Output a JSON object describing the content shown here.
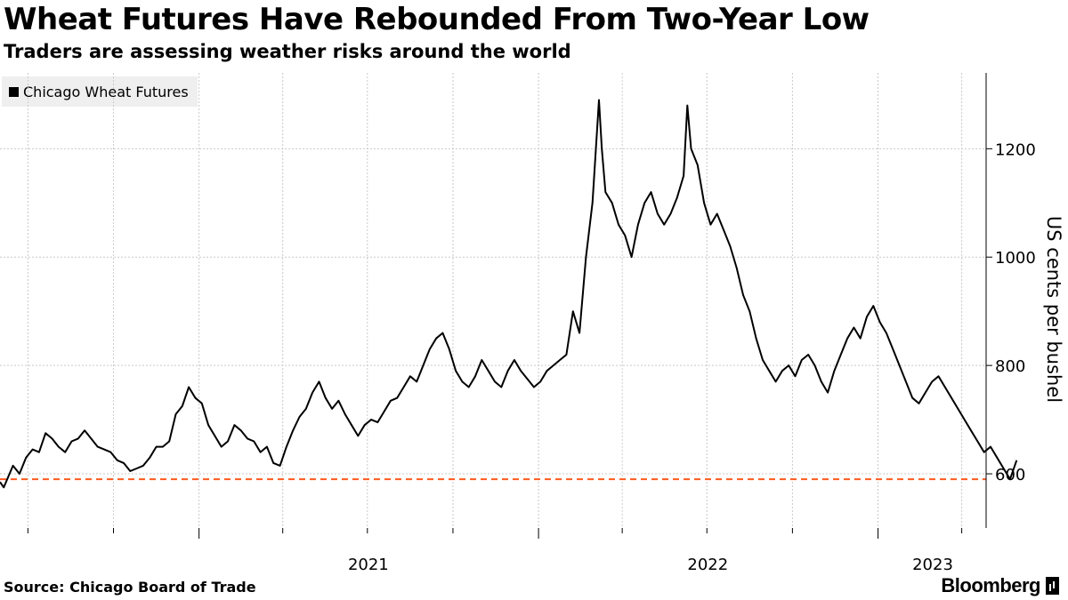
{
  "header": {
    "title": "Wheat Futures Have Rebounded From Two-Year Low",
    "subtitle": "Traders are assessing weather risks around the world"
  },
  "footer": {
    "source": "Source: Chicago Board of Trade",
    "brand": "Bloomberg"
  },
  "colors": {
    "line": "#000000",
    "reference": "#ff5a1f",
    "grid": "#c9c9c9",
    "legend_bg": "#efefef"
  },
  "chart_data": {
    "type": "line",
    "title": "Wheat Futures Have Rebounded From Two-Year Low",
    "subtitle": "Traders are assessing weather risks around the world",
    "ylabel": "US cents per bushel",
    "ylim": [
      500,
      1340
    ],
    "y_ticks": [
      600,
      800,
      1000,
      1200
    ],
    "x_range": [
      "2020-06-01",
      "2023-04-10"
    ],
    "x_tick_labels": [
      {
        "label": "2021",
        "date": "2021-01-01"
      },
      {
        "label": "2022",
        "date": "2022-01-01"
      },
      {
        "label": "2023",
        "date": "2023-01-01"
      }
    ],
    "grid": true,
    "legend_position": "top-left",
    "reference_line": {
      "value": 590,
      "style": "dashed"
    },
    "series": [
      {
        "name": "Chicago Wheat Futures",
        "points": [
          [
            "2020-06-01",
            585
          ],
          [
            "2020-06-05",
            575
          ],
          [
            "2020-06-10",
            595
          ],
          [
            "2020-06-15",
            615
          ],
          [
            "2020-06-22",
            600
          ],
          [
            "2020-06-29",
            630
          ],
          [
            "2020-07-06",
            645
          ],
          [
            "2020-07-13",
            640
          ],
          [
            "2020-07-20",
            675
          ],
          [
            "2020-07-27",
            665
          ],
          [
            "2020-08-03",
            650
          ],
          [
            "2020-08-10",
            640
          ],
          [
            "2020-08-17",
            660
          ],
          [
            "2020-08-24",
            665
          ],
          [
            "2020-08-31",
            680
          ],
          [
            "2020-09-07",
            665
          ],
          [
            "2020-09-14",
            650
          ],
          [
            "2020-09-21",
            645
          ],
          [
            "2020-09-28",
            640
          ],
          [
            "2020-10-05",
            625
          ],
          [
            "2020-10-12",
            620
          ],
          [
            "2020-10-19",
            605
          ],
          [
            "2020-10-26",
            610
          ],
          [
            "2020-11-02",
            615
          ],
          [
            "2020-11-09",
            630
          ],
          [
            "2020-11-16",
            650
          ],
          [
            "2020-11-23",
            650
          ],
          [
            "2020-11-30",
            660
          ],
          [
            "2020-12-07",
            710
          ],
          [
            "2020-12-14",
            725
          ],
          [
            "2020-12-21",
            760
          ],
          [
            "2020-12-28",
            740
          ],
          [
            "2021-01-04",
            730
          ],
          [
            "2021-01-11",
            690
          ],
          [
            "2021-01-18",
            670
          ],
          [
            "2021-01-25",
            650
          ],
          [
            "2021-02-01",
            660
          ],
          [
            "2021-02-08",
            690
          ],
          [
            "2021-02-15",
            680
          ],
          [
            "2021-02-22",
            665
          ],
          [
            "2021-03-01",
            660
          ],
          [
            "2021-03-08",
            640
          ],
          [
            "2021-03-15",
            650
          ],
          [
            "2021-03-22",
            620
          ],
          [
            "2021-03-29",
            615
          ],
          [
            "2021-04-05",
            650
          ],
          [
            "2021-04-12",
            680
          ],
          [
            "2021-04-19",
            705
          ],
          [
            "2021-04-26",
            720
          ],
          [
            "2021-05-03",
            750
          ],
          [
            "2021-05-10",
            770
          ],
          [
            "2021-05-17",
            740
          ],
          [
            "2021-05-24",
            720
          ],
          [
            "2021-05-31",
            735
          ],
          [
            "2021-06-07",
            710
          ],
          [
            "2021-06-14",
            690
          ],
          [
            "2021-06-21",
            670
          ],
          [
            "2021-06-28",
            690
          ],
          [
            "2021-07-05",
            700
          ],
          [
            "2021-07-12",
            695
          ],
          [
            "2021-07-19",
            715
          ],
          [
            "2021-07-26",
            735
          ],
          [
            "2021-08-02",
            740
          ],
          [
            "2021-08-09",
            760
          ],
          [
            "2021-08-16",
            780
          ],
          [
            "2021-08-23",
            770
          ],
          [
            "2021-08-30",
            800
          ],
          [
            "2021-09-06",
            830
          ],
          [
            "2021-09-13",
            850
          ],
          [
            "2021-09-20",
            860
          ],
          [
            "2021-09-27",
            830
          ],
          [
            "2021-10-04",
            790
          ],
          [
            "2021-10-11",
            770
          ],
          [
            "2021-10-18",
            760
          ],
          [
            "2021-10-25",
            780
          ],
          [
            "2021-11-01",
            810
          ],
          [
            "2021-11-08",
            790
          ],
          [
            "2021-11-15",
            770
          ],
          [
            "2021-11-22",
            760
          ],
          [
            "2021-11-29",
            790
          ],
          [
            "2021-12-06",
            810
          ],
          [
            "2021-12-13",
            790
          ],
          [
            "2021-12-20",
            775
          ],
          [
            "2021-12-27",
            760
          ],
          [
            "2022-01-03",
            770
          ],
          [
            "2022-01-10",
            790
          ],
          [
            "2022-01-17",
            800
          ],
          [
            "2022-01-24",
            810
          ],
          [
            "2022-01-31",
            820
          ],
          [
            "2022-02-07",
            900
          ],
          [
            "2022-02-14",
            860
          ],
          [
            "2022-02-21",
            1000
          ],
          [
            "2022-02-28",
            1100
          ],
          [
            "2022-03-07",
            1290
          ],
          [
            "2022-03-10",
            1200
          ],
          [
            "2022-03-14",
            1120
          ],
          [
            "2022-03-21",
            1100
          ],
          [
            "2022-03-28",
            1060
          ],
          [
            "2022-04-04",
            1040
          ],
          [
            "2022-04-11",
            1000
          ],
          [
            "2022-04-18",
            1060
          ],
          [
            "2022-04-25",
            1100
          ],
          [
            "2022-05-02",
            1120
          ],
          [
            "2022-05-09",
            1080
          ],
          [
            "2022-05-16",
            1060
          ],
          [
            "2022-05-23",
            1080
          ],
          [
            "2022-05-30",
            1110
          ],
          [
            "2022-06-06",
            1150
          ],
          [
            "2022-06-10",
            1280
          ],
          [
            "2022-06-14",
            1200
          ],
          [
            "2022-06-21",
            1170
          ],
          [
            "2022-06-28",
            1100
          ],
          [
            "2022-07-05",
            1060
          ],
          [
            "2022-07-12",
            1080
          ],
          [
            "2022-07-19",
            1050
          ],
          [
            "2022-07-26",
            1020
          ],
          [
            "2022-08-02",
            980
          ],
          [
            "2022-08-09",
            930
          ],
          [
            "2022-08-16",
            900
          ],
          [
            "2022-08-23",
            850
          ],
          [
            "2022-08-30",
            810
          ],
          [
            "2022-09-06",
            790
          ],
          [
            "2022-09-13",
            770
          ],
          [
            "2022-09-20",
            790
          ],
          [
            "2022-09-27",
            800
          ],
          [
            "2022-10-04",
            780
          ],
          [
            "2022-10-11",
            810
          ],
          [
            "2022-10-18",
            820
          ],
          [
            "2022-10-25",
            800
          ],
          [
            "2022-11-01",
            770
          ],
          [
            "2022-11-08",
            750
          ],
          [
            "2022-11-15",
            790
          ],
          [
            "2022-11-22",
            820
          ],
          [
            "2022-11-29",
            850
          ],
          [
            "2022-12-06",
            870
          ],
          [
            "2022-12-13",
            850
          ],
          [
            "2022-12-20",
            890
          ],
          [
            "2022-12-27",
            910
          ],
          [
            "2023-01-03",
            880
          ],
          [
            "2023-01-10",
            860
          ],
          [
            "2023-01-17",
            830
          ],
          [
            "2023-01-24",
            800
          ],
          [
            "2023-01-31",
            770
          ],
          [
            "2023-02-07",
            740
          ],
          [
            "2023-02-14",
            730
          ],
          [
            "2023-02-21",
            750
          ],
          [
            "2023-02-28",
            770
          ],
          [
            "2023-03-07",
            780
          ],
          [
            "2023-03-14",
            760
          ],
          [
            "2023-03-21",
            740
          ],
          [
            "2023-03-28",
            720
          ],
          [
            "2023-04-04",
            700
          ],
          [
            "2023-04-11",
            680
          ],
          [
            "2023-04-18",
            660
          ],
          [
            "2023-04-25",
            640
          ],
          [
            "2023-05-02",
            650
          ],
          [
            "2023-05-09",
            630
          ],
          [
            "2023-05-16",
            610
          ],
          [
            "2023-05-23",
            590
          ],
          [
            "2023-05-30",
            625
          ]
        ]
      }
    ]
  }
}
